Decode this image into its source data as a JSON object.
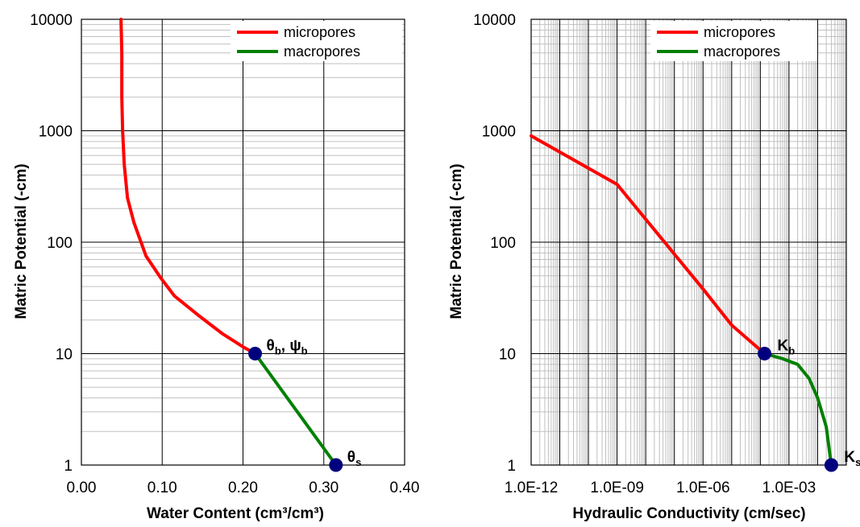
{
  "chart_data": [
    {
      "type": "line",
      "x_scale": "linear",
      "y_scale": "log",
      "xlim": [
        0.0,
        0.4
      ],
      "ylim": [
        1,
        10000
      ],
      "x_ticks": [
        "0.00",
        "0.10",
        "0.20",
        "0.30",
        "0.40"
      ],
      "y_ticks": [
        "1",
        "10",
        "100",
        "1000",
        "10000"
      ],
      "xlabel": "Water Content (cm³/cm³)",
      "ylabel": "Matric Potential (-cm)",
      "grid": true,
      "legend_position": "top-right",
      "series": [
        {
          "name": "micropores",
          "color": "#ff0000",
          "points": [
            {
              "x": 0.049,
              "y": 10000
            },
            {
              "x": 0.05,
              "y": 5000
            },
            {
              "x": 0.05,
              "y": 2000
            },
            {
              "x": 0.051,
              "y": 1000
            },
            {
              "x": 0.053,
              "y": 500
            },
            {
              "x": 0.057,
              "y": 250
            },
            {
              "x": 0.065,
              "y": 150
            },
            {
              "x": 0.08,
              "y": 75
            },
            {
              "x": 0.098,
              "y": 48
            },
            {
              "x": 0.115,
              "y": 33
            },
            {
              "x": 0.145,
              "y": 22
            },
            {
              "x": 0.175,
              "y": 15
            },
            {
              "x": 0.2,
              "y": 11.5
            },
            {
              "x": 0.215,
              "y": 10
            }
          ]
        },
        {
          "name": "macropores",
          "color": "#008000",
          "points": [
            {
              "x": 0.215,
              "y": 10
            },
            {
              "x": 0.315,
              "y": 1
            }
          ]
        }
      ],
      "markers": [
        {
          "x": 0.215,
          "y": 10
        },
        {
          "x": 0.315,
          "y": 1
        }
      ],
      "annotations": [
        {
          "main": "θ",
          "sub": "b",
          "mid": ", ψ",
          "sub2": "b"
        },
        {
          "main": "θ",
          "sub": "s",
          "mid": "",
          "sub2": ""
        }
      ]
    },
    {
      "type": "line",
      "x_scale": "log",
      "y_scale": "log",
      "xlim": [
        1e-12,
        0.1
      ],
      "ylim": [
        1,
        10000
      ],
      "x_ticks": [
        "1.0E-12",
        "1.0E-09",
        "1.0E-06",
        "1.0E-03"
      ],
      "y_ticks": [
        "1",
        "10",
        "100",
        "1000",
        "10000"
      ],
      "xlabel": "Hydraulic Conductivity (cm/sec)",
      "ylabel": "Matric Potential (-cm)",
      "grid": true,
      "legend_position": "top-right",
      "series": [
        {
          "name": "micropores",
          "color": "#ff0000",
          "points": [
            {
              "x": 1e-12,
              "y": 900
            },
            {
              "x": 1e-09,
              "y": 330
            },
            {
              "x": 1e-06,
              "y": 38
            },
            {
              "x": 1e-05,
              "y": 18
            },
            {
              "x": 0.00014,
              "y": 10
            }
          ]
        },
        {
          "name": "macropores",
          "color": "#008000",
          "points": [
            {
              "x": 0.00014,
              "y": 10
            },
            {
              "x": 0.0006,
              "y": 9
            },
            {
              "x": 0.002,
              "y": 8
            },
            {
              "x": 0.005,
              "y": 6
            },
            {
              "x": 0.01,
              "y": 4
            },
            {
              "x": 0.02,
              "y": 2.2
            },
            {
              "x": 0.03,
              "y": 1
            }
          ]
        }
      ],
      "markers": [
        {
          "x": 0.00014,
          "y": 10
        },
        {
          "x": 0.03,
          "y": 1
        }
      ],
      "annotations": [
        {
          "main": "K",
          "sub": "b",
          "mid": "",
          "sub2": ""
        },
        {
          "main": "K",
          "sub": "s",
          "mid": "",
          "sub2": ""
        }
      ]
    }
  ],
  "colors": {
    "marker": "#00007f",
    "major_grid": "#000000",
    "minor_grid": "#c0c0c0"
  }
}
